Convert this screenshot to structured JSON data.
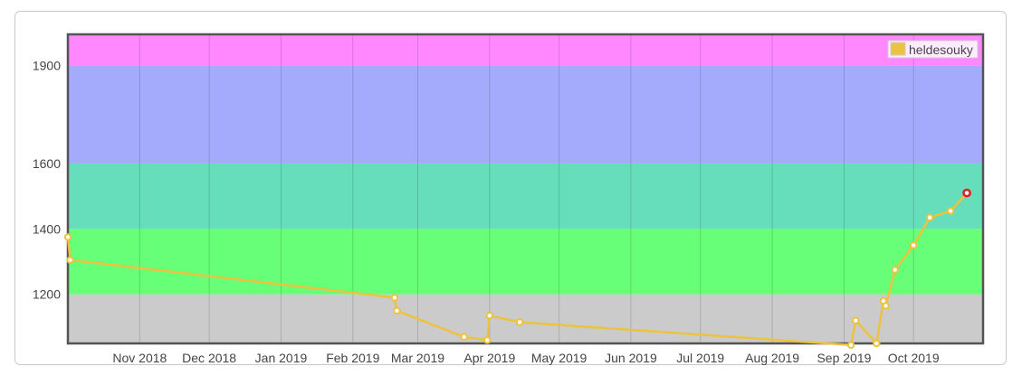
{
  "chart_data": {
    "type": "line",
    "title": "",
    "xlabel": "",
    "ylabel": "",
    "x_range": [
      "2018-10-01",
      "2019-10-31"
    ],
    "ylim": [
      1050,
      1995
    ],
    "y_ticks": [
      1200,
      1400,
      1600,
      1900
    ],
    "x_ticks": [
      {
        "date": "2018-11-01",
        "label": "Nov 2018"
      },
      {
        "date": "2018-12-01",
        "label": "Dec 2018"
      },
      {
        "date": "2019-01-01",
        "label": "Jan 2019"
      },
      {
        "date": "2019-02-01",
        "label": "Feb 2019"
      },
      {
        "date": "2019-03-01",
        "label": "Mar 2019"
      },
      {
        "date": "2019-04-01",
        "label": "Apr 2019"
      },
      {
        "date": "2019-05-01",
        "label": "May 2019"
      },
      {
        "date": "2019-06-01",
        "label": "Jun 2019"
      },
      {
        "date": "2019-07-01",
        "label": "Jul 2019"
      },
      {
        "date": "2019-08-01",
        "label": "Aug 2019"
      },
      {
        "date": "2019-09-01",
        "label": "Sep 2019"
      },
      {
        "date": "2019-10-01",
        "label": "Oct 2019"
      }
    ],
    "bands": [
      {
        "from": 1050,
        "to": 1200,
        "color": "#cbcbcb"
      },
      {
        "from": 1200,
        "to": 1400,
        "color": "#66ff77"
      },
      {
        "from": 1400,
        "to": 1600,
        "color": "#66ddbb"
      },
      {
        "from": 1600,
        "to": 1900,
        "color": "#a4aafc"
      },
      {
        "from": 1900,
        "to": 1995,
        "color": "#ff88ff"
      }
    ],
    "grid": true,
    "legend_position": "top-right",
    "series": [
      {
        "name": "heldesouky",
        "color": "#edc240",
        "last_point_color": "#dd2222",
        "points": [
          {
            "x": "2018-10-01",
            "y": 1375
          },
          {
            "x": "2018-10-02",
            "y": 1305
          },
          {
            "x": "2019-02-19",
            "y": 1190
          },
          {
            "x": "2019-02-20",
            "y": 1150
          },
          {
            "x": "2019-03-21",
            "y": 1070
          },
          {
            "x": "2019-03-31",
            "y": 1060
          },
          {
            "x": "2019-04-01",
            "y": 1135
          },
          {
            "x": "2019-04-14",
            "y": 1115
          },
          {
            "x": "2019-09-04",
            "y": 1045
          },
          {
            "x": "2019-09-06",
            "y": 1120
          },
          {
            "x": "2019-09-15",
            "y": 1050
          },
          {
            "x": "2019-09-18",
            "y": 1180
          },
          {
            "x": "2019-09-19",
            "y": 1165
          },
          {
            "x": "2019-09-23",
            "y": 1275
          },
          {
            "x": "2019-10-01",
            "y": 1350
          },
          {
            "x": "2019-10-08",
            "y": 1435
          },
          {
            "x": "2019-10-17",
            "y": 1455
          },
          {
            "x": "2019-10-24",
            "y": 1510
          }
        ]
      }
    ]
  }
}
